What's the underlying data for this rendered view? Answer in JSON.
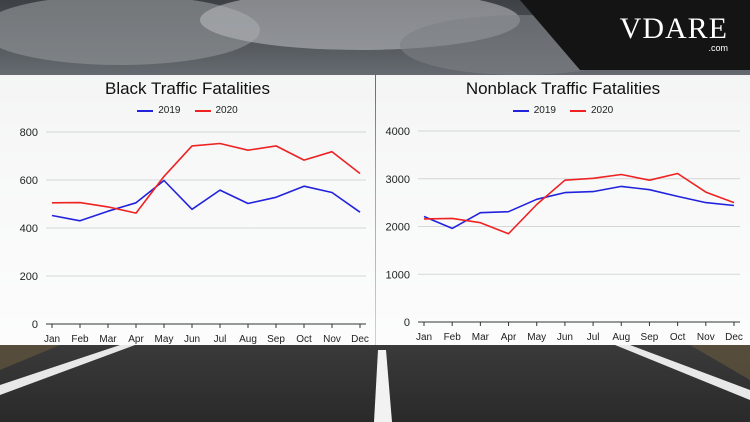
{
  "brand": {
    "name": "VDARE",
    "suffix": ".com"
  },
  "colors": {
    "series2019": "#2222dd",
    "series2020": "#ee2222",
    "grid": "#d6d6d6",
    "axis": "#333333"
  },
  "chart_data": [
    {
      "type": "line",
      "title": "Black Traffic Fatalities",
      "categories": [
        "Jan",
        "Feb",
        "Mar",
        "Apr",
        "May",
        "Jun",
        "Jul",
        "Aug",
        "Sep",
        "Oct",
        "Nov",
        "Dec"
      ],
      "ylim": [
        0,
        800
      ],
      "yticks": [
        "0",
        "200",
        "400",
        "600",
        "800"
      ],
      "grid": true,
      "legend": "top-center",
      "series": [
        {
          "name": "2019",
          "color": "#2222dd",
          "values": [
            452,
            430,
            470,
            505,
            598,
            478,
            558,
            502,
            528,
            574,
            548,
            466
          ]
        },
        {
          "name": "2020",
          "color": "#ee2222",
          "values": [
            505,
            506,
            488,
            462,
            615,
            742,
            752,
            724,
            742,
            683,
            718,
            627
          ]
        }
      ]
    },
    {
      "type": "line",
      "title": "Nonblack Traffic Fatalities",
      "categories": [
        "Jan",
        "Feb",
        "Mar",
        "Apr",
        "May",
        "Jun",
        "Jul",
        "Aug",
        "Sep",
        "Oct",
        "Nov",
        "Dec"
      ],
      "ylim": [
        0,
        4000
      ],
      "yticks": [
        "0",
        "1000",
        "2000",
        "3000",
        "4000"
      ],
      "grid": true,
      "legend": "top-center",
      "series": [
        {
          "name": "2019",
          "color": "#2222dd",
          "values": [
            2210,
            1960,
            2290,
            2310,
            2570,
            2710,
            2730,
            2840,
            2770,
            2630,
            2500,
            2440
          ]
        },
        {
          "name": "2020",
          "color": "#ee2222",
          "values": [
            2160,
            2170,
            2080,
            1850,
            2460,
            2970,
            3010,
            3090,
            2970,
            3110,
            2720,
            2500
          ]
        }
      ]
    }
  ]
}
